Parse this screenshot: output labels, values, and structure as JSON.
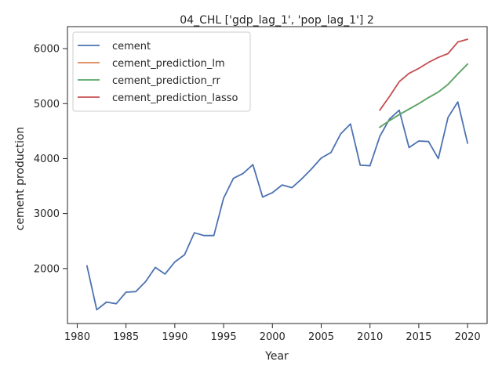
{
  "chart_data": {
    "type": "line",
    "title": "04_CHL ['gdp_lag_1', 'pop_lag_1'] 2",
    "xlabel": "Year",
    "ylabel": "cement production",
    "xlim": [
      1979,
      2022
    ],
    "ylim": [
      1000,
      6400
    ],
    "xticks": [
      1980,
      1985,
      1990,
      1995,
      2000,
      2005,
      2010,
      2015,
      2020
    ],
    "yticks": [
      2000,
      3000,
      4000,
      5000,
      6000
    ],
    "legend_position": "top-left",
    "grid": false,
    "series": [
      {
        "name": "cement",
        "color": "#4c72b0",
        "x": [
          1981,
          1982,
          1983,
          1984,
          1985,
          1986,
          1987,
          1988,
          1989,
          1990,
          1991,
          1992,
          1993,
          1994,
          1995,
          1996,
          1997,
          1998,
          1999,
          2000,
          2001,
          2002,
          2003,
          2004,
          2005,
          2006,
          2007,
          2008,
          2009,
          2010,
          2011,
          2012,
          2013,
          2014,
          2015,
          2016,
          2017,
          2018,
          2019,
          2020
        ],
        "y": [
          2050,
          1250,
          1390,
          1360,
          1570,
          1580,
          1760,
          2020,
          1900,
          2120,
          2250,
          2650,
          2600,
          2600,
          3280,
          3640,
          3730,
          3890,
          3300,
          3380,
          3520,
          3470,
          3630,
          3810,
          4010,
          4110,
          4450,
          4630,
          3880,
          3870,
          4400,
          4720,
          4880,
          4200,
          4320,
          4310,
          4000,
          4750,
          5030,
          4280
        ]
      },
      {
        "name": "cement_prediction_lm",
        "color": "#dd8452",
        "x": [
          2011,
          2012,
          2013,
          2014,
          2015,
          2016,
          2017,
          2018,
          2019,
          2020
        ],
        "y": [
          4570,
          4690,
          4800,
          4900,
          5000,
          5110,
          5210,
          5350,
          5540,
          5720
        ]
      },
      {
        "name": "cement_prediction_rr",
        "color": "#55a868",
        "x": [
          2011,
          2012,
          2013,
          2014,
          2015,
          2016,
          2017,
          2018,
          2019,
          2020
        ],
        "y": [
          4570,
          4690,
          4800,
          4900,
          5000,
          5110,
          5210,
          5350,
          5540,
          5720
        ]
      },
      {
        "name": "cement_prediction_lasso",
        "color": "#c44e52",
        "x": [
          2011,
          2012,
          2013,
          2014,
          2015,
          2016,
          2017,
          2018,
          2019,
          2020
        ],
        "y": [
          4880,
          5130,
          5400,
          5550,
          5640,
          5750,
          5840,
          5910,
          6120,
          6170
        ]
      }
    ]
  }
}
